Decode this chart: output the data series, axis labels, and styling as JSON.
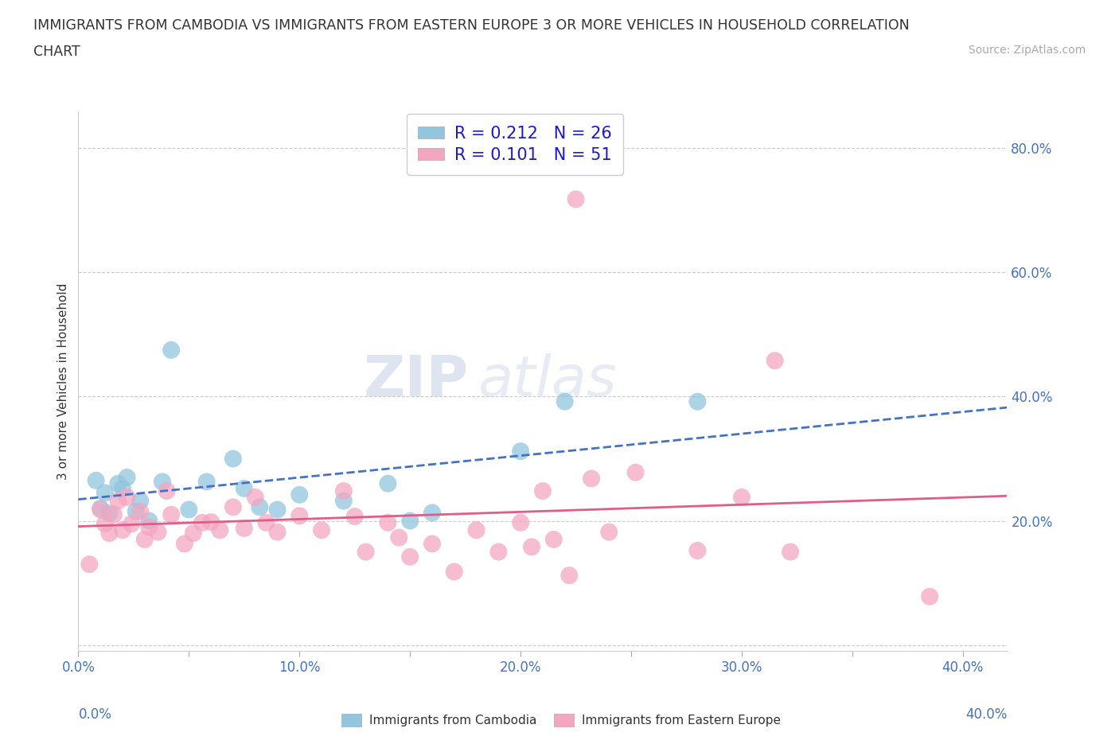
{
  "title_line1": "IMMIGRANTS FROM CAMBODIA VS IMMIGRANTS FROM EASTERN EUROPE 3 OR MORE VEHICLES IN HOUSEHOLD CORRELATION",
  "title_line2": "CHART",
  "source": "Source: ZipAtlas.com",
  "ylabel": "3 or more Vehicles in Household",
  "legend_label1": "Immigrants from Cambodia",
  "legend_label2": "Immigrants from Eastern Europe",
  "R1": 0.212,
  "N1": 26,
  "R2": 0.101,
  "N2": 51,
  "color1": "#92c5de",
  "color2": "#f4a6c0",
  "trendline1_color": "#4472c4",
  "trendline2_color": "#e05c8a",
  "xlim": [
    0.0,
    0.42
  ],
  "ylim": [
    -0.01,
    0.86
  ],
  "xticks": [
    0.0,
    0.05,
    0.1,
    0.15,
    0.2,
    0.25,
    0.3,
    0.35,
    0.4
  ],
  "xtick_labels": [
    "0.0%",
    "",
    "10.0%",
    "",
    "20.0%",
    "",
    "30.0%",
    "",
    "40.0%"
  ],
  "ytick_positions": [
    0.0,
    0.2,
    0.4,
    0.6,
    0.8
  ],
  "ytick_labels": [
    "",
    "20.0%",
    "40.0%",
    "60.0%",
    "80.0%"
  ],
  "grid_color": "#cccccc",
  "background_color": "#ffffff",
  "watermark_part1": "ZIP",
  "watermark_part2": "atlas",
  "scatter1_x": [
    0.008,
    0.01,
    0.012,
    0.014,
    0.018,
    0.02,
    0.022,
    0.026,
    0.028,
    0.032,
    0.038,
    0.042,
    0.05,
    0.058,
    0.07,
    0.075,
    0.082,
    0.09,
    0.1,
    0.12,
    0.14,
    0.15,
    0.16,
    0.2,
    0.22,
    0.28
  ],
  "scatter1_y": [
    0.265,
    0.22,
    0.245,
    0.212,
    0.26,
    0.252,
    0.27,
    0.215,
    0.232,
    0.2,
    0.263,
    0.475,
    0.218,
    0.263,
    0.3,
    0.252,
    0.222,
    0.218,
    0.242,
    0.232,
    0.26,
    0.2,
    0.213,
    0.312,
    0.392,
    0.392
  ],
  "scatter2_x": [
    0.005,
    0.01,
    0.012,
    0.014,
    0.016,
    0.018,
    0.02,
    0.022,
    0.024,
    0.028,
    0.03,
    0.032,
    0.036,
    0.04,
    0.042,
    0.048,
    0.052,
    0.056,
    0.06,
    0.064,
    0.07,
    0.075,
    0.08,
    0.085,
    0.09,
    0.1,
    0.11,
    0.12,
    0.125,
    0.13,
    0.14,
    0.145,
    0.15,
    0.16,
    0.17,
    0.18,
    0.19,
    0.2,
    0.205,
    0.21,
    0.215,
    0.222,
    0.225,
    0.232,
    0.24,
    0.252,
    0.28,
    0.3,
    0.315,
    0.322,
    0.385
  ],
  "scatter2_y": [
    0.13,
    0.218,
    0.195,
    0.18,
    0.21,
    0.232,
    0.185,
    0.238,
    0.195,
    0.215,
    0.17,
    0.19,
    0.182,
    0.248,
    0.21,
    0.163,
    0.18,
    0.197,
    0.198,
    0.185,
    0.222,
    0.188,
    0.238,
    0.197,
    0.182,
    0.208,
    0.185,
    0.248,
    0.207,
    0.15,
    0.197,
    0.173,
    0.142,
    0.163,
    0.118,
    0.185,
    0.15,
    0.197,
    0.158,
    0.248,
    0.17,
    0.112,
    0.718,
    0.268,
    0.182,
    0.278,
    0.152,
    0.238,
    0.458,
    0.15,
    0.078
  ]
}
